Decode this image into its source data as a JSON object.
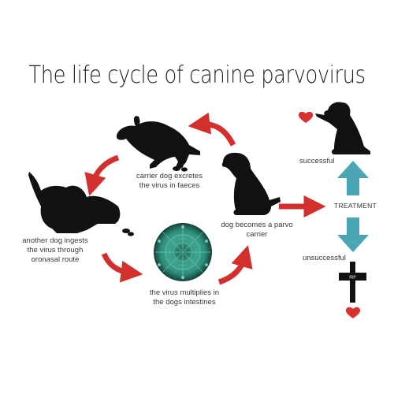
{
  "title": "The life cycle of canine parvovirus",
  "steps": {
    "excrete": "carrier dog excretes\nthe virus in faeces",
    "carrier": "dog becomes a parvo\ncarrier",
    "ingest": "another dog ingests\nthe virus through\noronasal route",
    "multiply": "the virus multiplies in\nthe dogs intestines"
  },
  "treatment": {
    "label": "TREATMENT",
    "successful": "successful",
    "unsuccessful": "unsuccessful",
    "cross_text": "RIP"
  },
  "colors": {
    "arrow_red": "#d2302c",
    "arrow_teal": "#4aa6b4",
    "silhouette": "#111111",
    "virus": "#2f8f7d",
    "heart": "#d9312f"
  }
}
